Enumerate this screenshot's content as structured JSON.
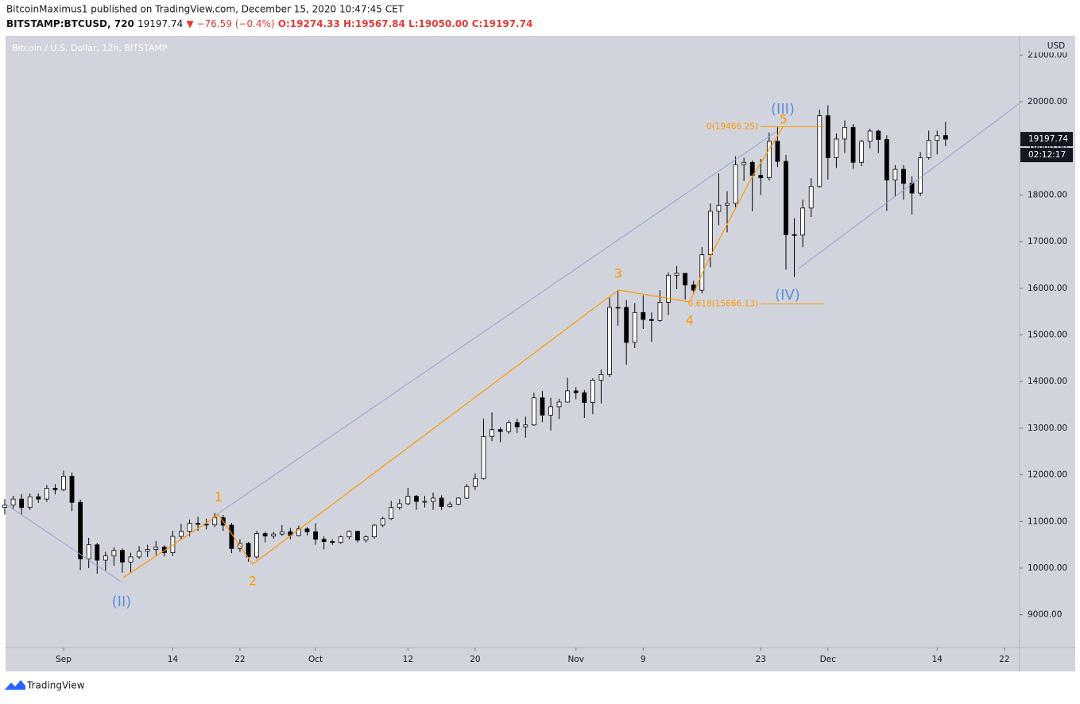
{
  "header": {
    "publisher": "BitcoinMaximus1 published on TradingView.com, December 15, 2020 10:47:45 CET",
    "symbol": "BITSTAMP:BTCUSD, 720",
    "last": "19197.74",
    "change": "▼ −76.59 (−0.4%)",
    "open": "O:19274.33",
    "high": "H:19567.84",
    "low": "L:19050.00",
    "close": "C:19197.74"
  },
  "footer": {
    "brand": "TradingView"
  },
  "chart_data": {
    "type": "candlestick",
    "title": "Bitcoin / U.S. Dollar, 12h, BITSTAMP",
    "y_axis_label": "USD",
    "countdown": "02:12:17",
    "categories": [
      null,
      null,
      null,
      null,
      null,
      null,
      null,
      "Sep",
      null,
      null,
      null,
      null,
      null,
      null,
      null,
      null,
      null,
      null,
      null,
      null,
      "14",
      null,
      null,
      null,
      null,
      null,
      null,
      null,
      "22",
      null,
      null,
      null,
      null,
      null,
      null,
      null,
      null,
      "Oct",
      null,
      null,
      null,
      null,
      null,
      null,
      null,
      null,
      null,
      null,
      "12",
      null,
      null,
      null,
      null,
      null,
      null,
      null,
      "20",
      null,
      null,
      null,
      null,
      null,
      null,
      null,
      null,
      null,
      null,
      null,
      "Nov",
      null,
      null,
      null,
      null,
      null,
      null,
      null,
      "9",
      null,
      null,
      null,
      null,
      null,
      null,
      null,
      null,
      null,
      null,
      null,
      null,
      null,
      "23",
      null,
      null,
      null,
      null,
      null,
      null,
      null,
      "Dec",
      null,
      null,
      null,
      null,
      null,
      null,
      null,
      null,
      null,
      null,
      null,
      null,
      "14",
      null,
      null,
      null,
      null,
      null,
      null,
      null,
      "22",
      null
    ],
    "open": [
      11300,
      11350,
      11480,
      11300,
      11530,
      11480,
      11710,
      11680,
      11970,
      11410,
      10200,
      10500,
      10170,
      10260,
      10380,
      10130,
      10240,
      10360,
      10400,
      10450,
      10330,
      10680,
      10790,
      10960,
      10940,
      10930,
      11080,
      10920,
      10420,
      10530,
      10240,
      10740,
      10690,
      10730,
      10780,
      10700,
      10840,
      10780,
      10620,
      10570,
      10550,
      10670,
      10790,
      10600,
      10670,
      10920,
      11060,
      11300,
      11380,
      11540,
      11430,
      11430,
      11500,
      11320,
      11370,
      11500,
      11750,
      11920,
      12820,
      12970,
      12930,
      13120,
      13030,
      13070,
      13650,
      13280,
      13460,
      13560,
      13800,
      13760,
      13550,
      14030,
      14150,
      15590,
      15590,
      14840,
      15480,
      15330,
      15310,
      15700,
      16280,
      16320,
      16070,
      15960,
      16720,
      17650,
      17780,
      17820,
      18650,
      18700,
      18420,
      18370,
      19150,
      18720,
      17150,
      17140,
      17720,
      18180,
      19700,
      18800,
      19200,
      19450,
      18700,
      19150,
      19370,
      19190,
      18320,
      18550,
      18250,
      18040,
      18800,
      19170,
      19274.33,
      null,
      null,
      null,
      null,
      null,
      null,
      null,
      null
    ],
    "high": [
      11480,
      11550,
      11590,
      11600,
      11600,
      11780,
      11800,
      12090,
      12050,
      11470,
      10650,
      10540,
      10350,
      10450,
      10420,
      10330,
      10470,
      10500,
      10580,
      10490,
      10800,
      10950,
      11040,
      11100,
      11060,
      11180,
      11140,
      10970,
      10620,
      10560,
      10800,
      10780,
      10780,
      10920,
      10860,
      10910,
      10880,
      10960,
      10680,
      10620,
      10700,
      10810,
      10800,
      10700,
      10940,
      11100,
      11440,
      11480,
      11720,
      11570,
      11550,
      11620,
      11560,
      11420,
      11520,
      11800,
      12030,
      13200,
      13340,
      13020,
      13170,
      13200,
      13250,
      13760,
      13800,
      13650,
      13630,
      14080,
      13880,
      13820,
      14070,
      14260,
      15800,
      15970,
      15750,
      15680,
      15850,
      15480,
      15960,
      16340,
      16480,
      16320,
      16160,
      16880,
      17820,
      18460,
      18080,
      18830,
      18800,
      18740,
      18770,
      19340,
      19470,
      18860,
      17500,
      17900,
      18360,
      19830,
      19920,
      19320,
      19600,
      19520,
      19180,
      19420,
      19400,
      19280,
      18640,
      18640,
      18400,
      18920,
      19380,
      19380,
      19567.84,
      null,
      null,
      null,
      null,
      null,
      null,
      null,
      null
    ],
    "low": [
      11150,
      11250,
      11150,
      11250,
      11400,
      11420,
      11580,
      11650,
      11220,
      9960,
      10000,
      9880,
      9950,
      10050,
      9900,
      9900,
      10200,
      10240,
      10280,
      10250,
      10260,
      10620,
      10680,
      10800,
      10830,
      10880,
      10800,
      10320,
      10350,
      10140,
      10200,
      10550,
      10630,
      10690,
      10620,
      10680,
      10700,
      10500,
      10400,
      10500,
      10520,
      10620,
      10550,
      10550,
      10630,
      10880,
      11030,
      11250,
      11350,
      11250,
      11300,
      11250,
      11250,
      11300,
      11350,
      11480,
      11680,
      11900,
      12720,
      12700,
      12880,
      12900,
      12800,
      13050,
      13130,
      12950,
      13200,
      13550,
      13620,
      13220,
      13300,
      13530,
      14100,
      15200,
      14360,
      14720,
      15130,
      14850,
      15280,
      15430,
      15980,
      15760,
      15870,
      15890,
      16450,
      17350,
      17200,
      17740,
      18300,
      17650,
      18000,
      18310,
      18600,
      16400,
      16240,
      16880,
      17530,
      18160,
      18330,
      18580,
      18900,
      18560,
      18620,
      19000,
      18900,
      17660,
      17960,
      17900,
      17580,
      17980,
      18760,
      18870,
      19050,
      null,
      null,
      null,
      null,
      null,
      null,
      null,
      null
    ],
    "close": [
      11350,
      11480,
      11300,
      11530,
      11480,
      11710,
      11680,
      11970,
      11410,
      10200,
      10500,
      10170,
      10260,
      10380,
      10130,
      10240,
      10360,
      10400,
      10450,
      10330,
      10680,
      10790,
      10960,
      10940,
      10930,
      11080,
      10920,
      10420,
      10530,
      10240,
      10740,
      10690,
      10730,
      10780,
      10700,
      10840,
      10780,
      10620,
      10570,
      10550,
      10670,
      10790,
      10600,
      10670,
      10920,
      11060,
      11300,
      11380,
      11540,
      11430,
      11430,
      11500,
      11320,
      11370,
      11500,
      11750,
      11920,
      12820,
      12970,
      12930,
      13120,
      13030,
      13070,
      13650,
      13280,
      13460,
      13560,
      13800,
      13760,
      13550,
      14030,
      14150,
      15590,
      15590,
      14840,
      15480,
      15330,
      15310,
      15700,
      16280,
      16320,
      16070,
      15960,
      16720,
      17650,
      17780,
      17820,
      18650,
      18700,
      18420,
      18370,
      19150,
      18720,
      17150,
      17140,
      17720,
      18180,
      19700,
      18800,
      19200,
      19450,
      18700,
      19150,
      19370,
      19190,
      18320,
      18550,
      18250,
      18040,
      18800,
      19170,
      19270,
      19197.74,
      null,
      null,
      null,
      null,
      null,
      null,
      null,
      null
    ],
    "up_color": "#ffffff",
    "down_color": "#000000",
    "ylim": [
      8296,
      21414
    ],
    "yticks": [
      {
        "value": 9000,
        "label": "9000.00"
      },
      {
        "value": 10000,
        "label": "10000.00"
      },
      {
        "value": 11000,
        "label": "11000.00"
      },
      {
        "value": 12000,
        "label": "12000.00"
      },
      {
        "value": 13000,
        "label": "13000.00"
      },
      {
        "value": 14000,
        "label": "14000.00"
      },
      {
        "value": 15000,
        "label": "15000.00"
      },
      {
        "value": 16000,
        "label": "16000.00"
      },
      {
        "value": 17000,
        "label": "17000.00"
      },
      {
        "value": 18000,
        "label": "18000.00"
      },
      {
        "value": 19000,
        "label": "19000.00"
      },
      {
        "value": 20000,
        "label": "20000.00"
      },
      {
        "value": 21000,
        "label": "21000.00"
      }
    ],
    "fib_levels": [
      {
        "value": 19466.25,
        "label": "0(19466.25)"
      },
      {
        "value": 15666.13,
        "label": "0.618(15666.13)"
      }
    ],
    "wave_labels": [
      "(II)",
      "(III)",
      "(IV)",
      "1",
      "2",
      "3",
      "4",
      "5"
    ]
  }
}
